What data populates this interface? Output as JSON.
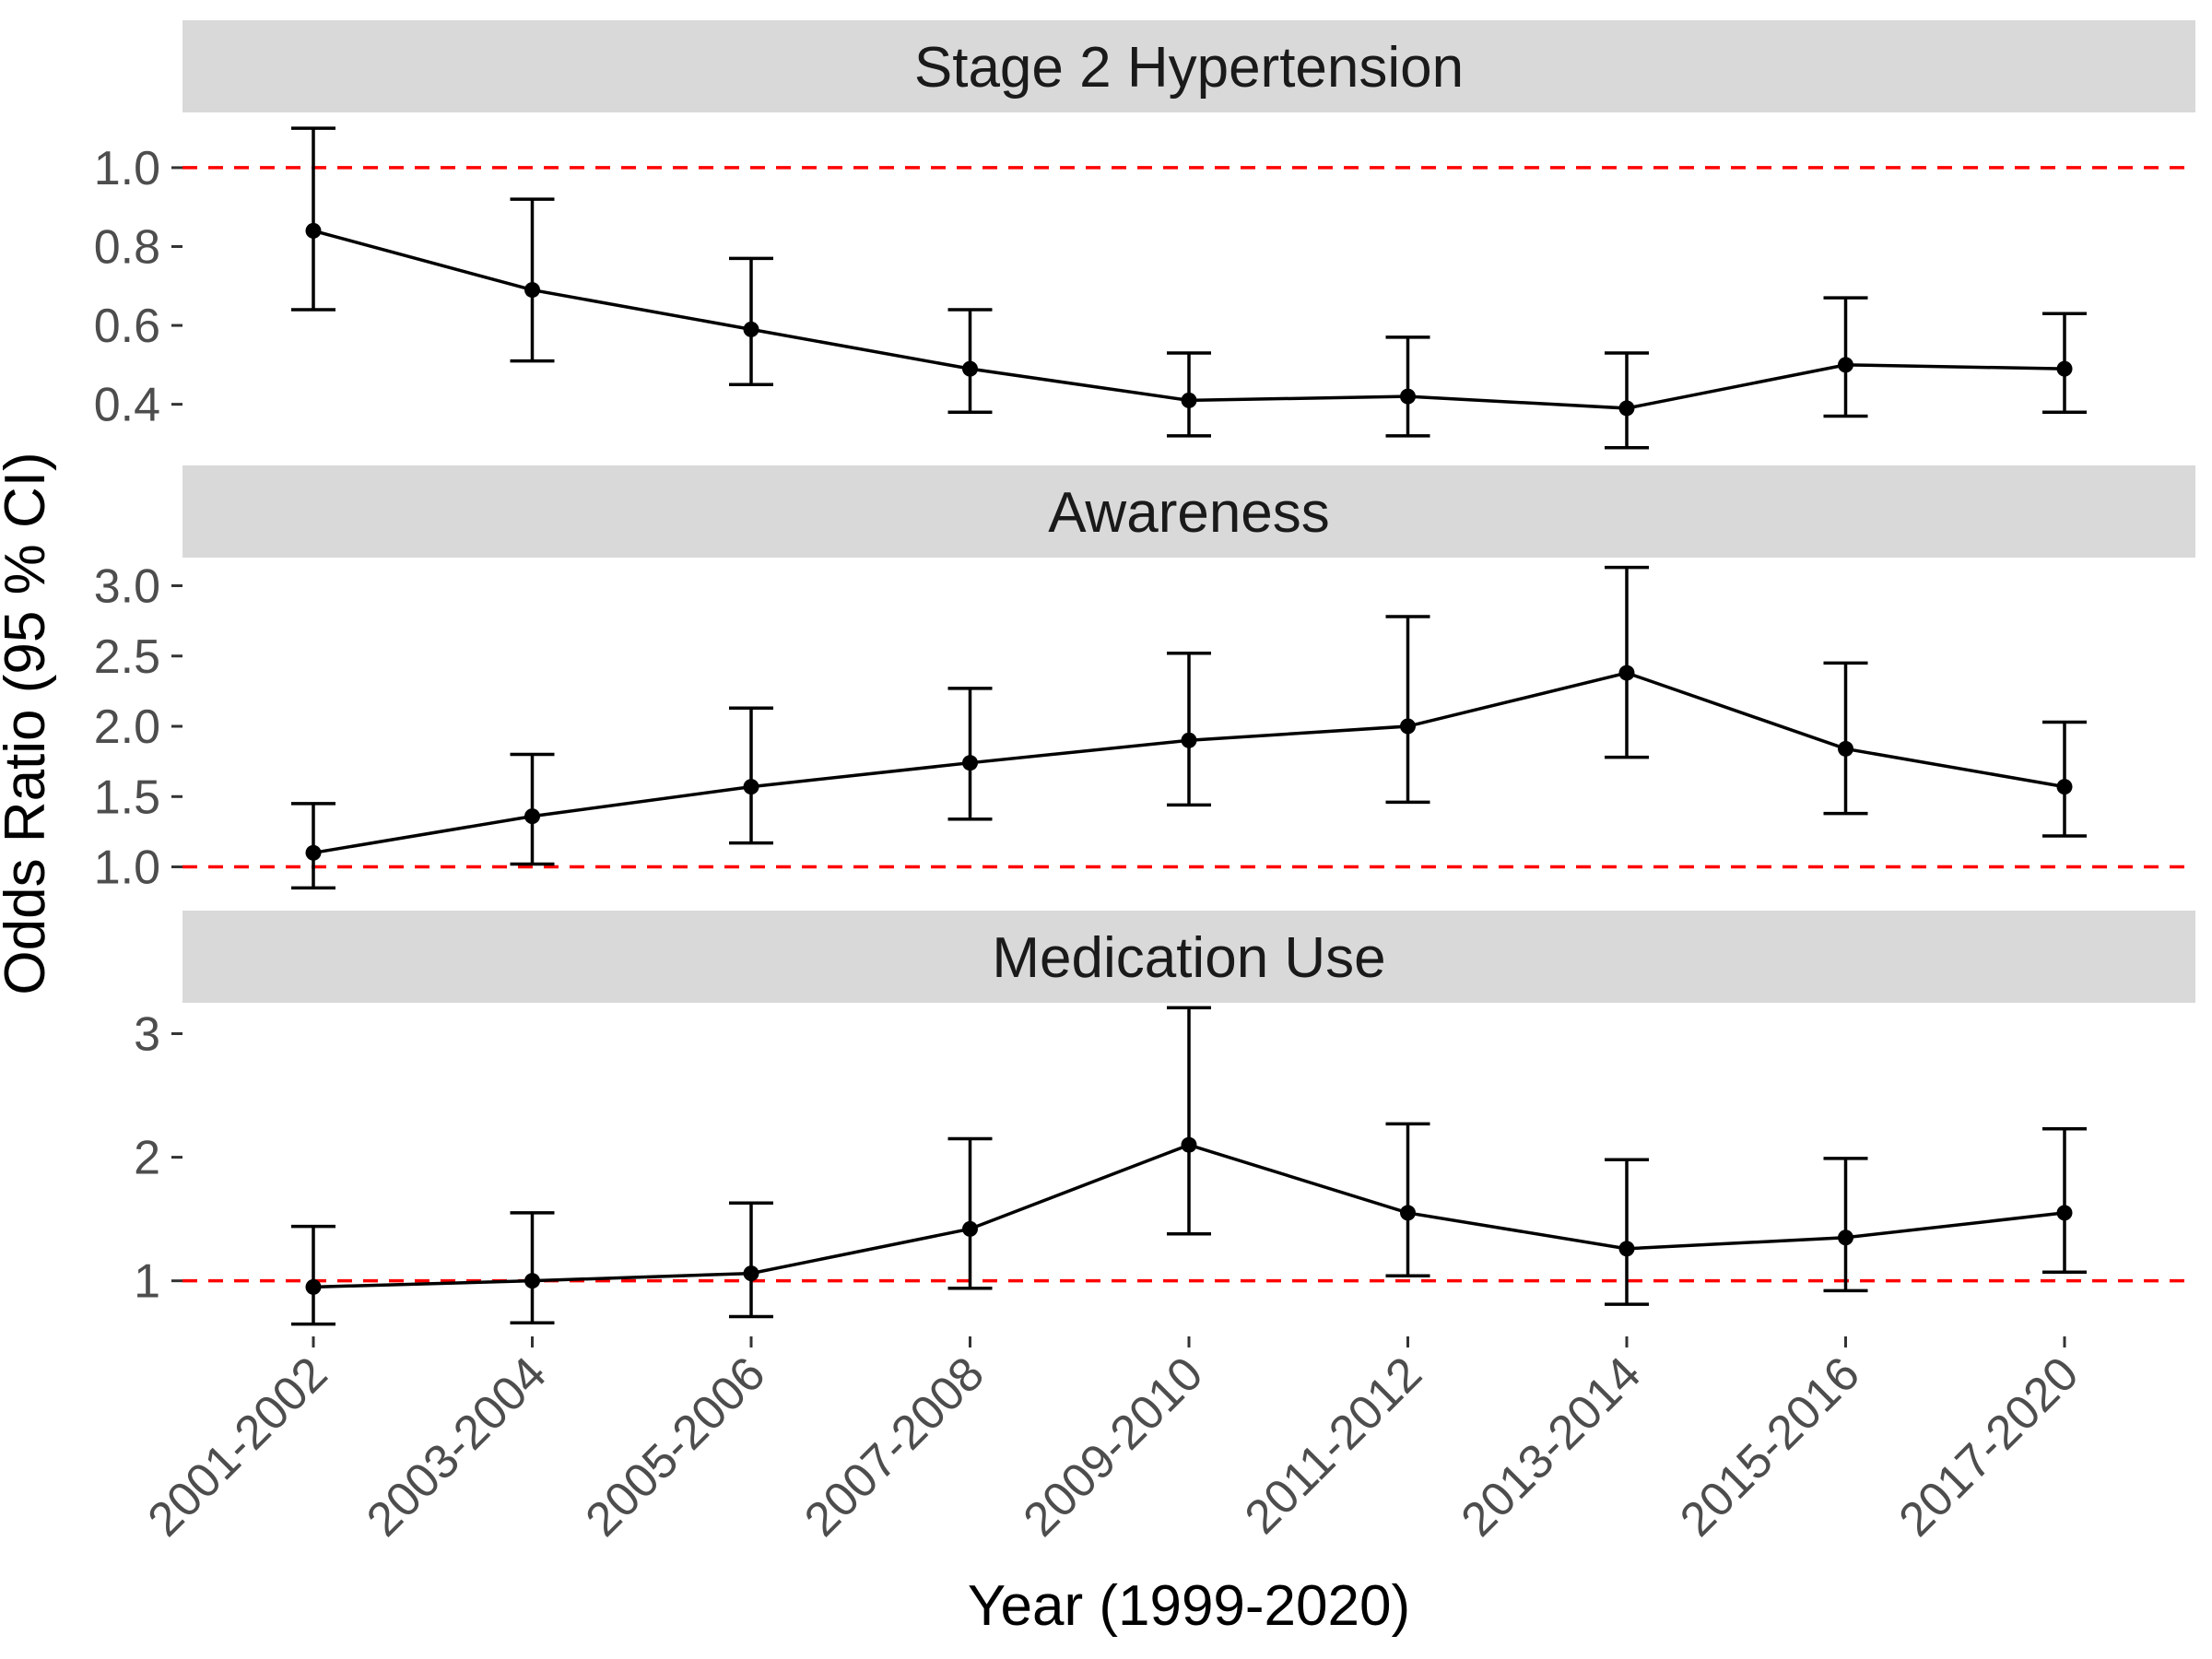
{
  "chart_data": {
    "type": "line",
    "xlabel": "Year (1999-2020)",
    "ylabel": "Odds Ratio (95 % CI)",
    "categories": [
      "2001-2002",
      "2003-2004",
      "2005-2006",
      "2007-2008",
      "2009-2010",
      "2011-2012",
      "2013-2014",
      "2015-2016",
      "2017-2020"
    ],
    "reference_line": {
      "value": 1,
      "color": "#ff0000",
      "style": "dashed"
    },
    "grid": false,
    "legend": "none",
    "panels": [
      {
        "title": "Stage 2 Hypertension",
        "ylim": [
          0.28,
          1.14
        ],
        "yticks": [
          0.4,
          0.6,
          0.8,
          1.0
        ],
        "ytick_labels": [
          "0.4",
          "0.6",
          "0.8",
          "1.0"
        ],
        "values": [
          0.84,
          0.69,
          0.59,
          0.49,
          0.41,
          0.42,
          0.39,
          0.5,
          0.49
        ],
        "lower": [
          0.64,
          0.51,
          0.45,
          0.38,
          0.32,
          0.32,
          0.29,
          0.37,
          0.38
        ],
        "upper": [
          1.1,
          0.92,
          0.77,
          0.64,
          0.53,
          0.57,
          0.53,
          0.67,
          0.63
        ]
      },
      {
        "title": "Awareness",
        "ylim": [
          0.82,
          3.2
        ],
        "yticks": [
          1.0,
          1.5,
          2.0,
          2.5,
          3.0
        ],
        "ytick_labels": [
          "1.0",
          "1.5",
          "2.0",
          "2.5",
          "3.0"
        ],
        "values": [
          1.1,
          1.36,
          1.57,
          1.74,
          1.9,
          2.0,
          2.38,
          1.84,
          1.57
        ],
        "lower": [
          0.85,
          1.02,
          1.17,
          1.34,
          1.44,
          1.46,
          1.78,
          1.38,
          1.22
        ],
        "upper": [
          1.45,
          1.8,
          2.13,
          2.27,
          2.52,
          2.78,
          3.13,
          2.45,
          2.03
        ]
      },
      {
        "title": "Medication Use",
        "ylim": [
          0.55,
          3.25
        ],
        "yticks": [
          1,
          2,
          3
        ],
        "ytick_labels": [
          "1",
          "2",
          "3"
        ],
        "values": [
          0.95,
          1.0,
          1.06,
          1.42,
          2.1,
          1.55,
          1.26,
          1.35,
          1.55
        ],
        "lower": [
          0.65,
          0.66,
          0.71,
          0.94,
          1.38,
          1.04,
          0.81,
          0.92,
          1.07
        ],
        "upper": [
          1.44,
          1.55,
          1.63,
          2.15,
          3.21,
          2.27,
          1.98,
          1.99,
          2.23
        ]
      }
    ]
  }
}
